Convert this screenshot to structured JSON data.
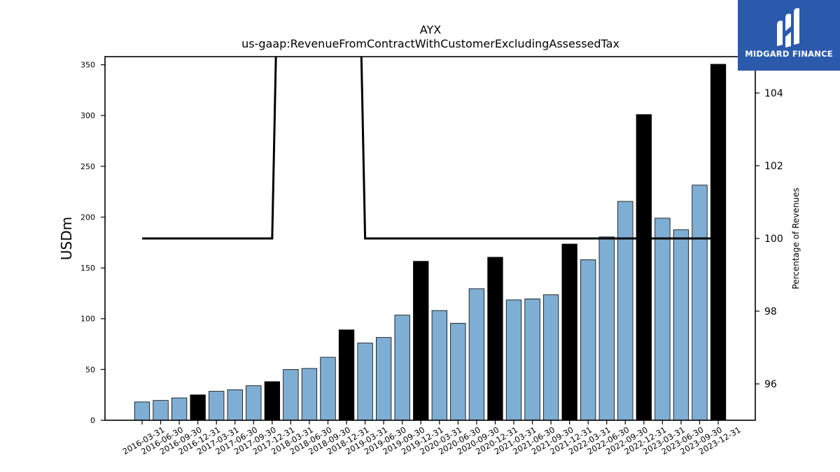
{
  "chart_data": {
    "type": "bar",
    "title": "AYX",
    "subtitle": "us-gaap:RevenueFromContractWithCustomerExcludingAssessedTax",
    "ylabel": "USDm",
    "y2label": "Percentage of Revenues",
    "ylim": [
      0,
      358
    ],
    "y2lim": [
      95.0,
      105.0
    ],
    "yticks": [
      0,
      50,
      100,
      150,
      200,
      250,
      300,
      350
    ],
    "y2ticks": [
      96,
      98,
      100,
      102,
      104
    ],
    "grid": false,
    "categories": [
      "2016-03-31",
      "2016-06-30",
      "2016-09-30",
      "2016-12-31",
      "2017-03-31",
      "2017-06-30",
      "2017-09-30",
      "2017-12-31",
      "2018-03-31",
      "2018-06-30",
      "2018-09-30",
      "2018-12-31",
      "2019-03-31",
      "2019-06-30",
      "2019-09-30",
      "2019-12-31",
      "2020-03-31",
      "2020-06-30",
      "2020-09-30",
      "2020-12-31",
      "2021-03-31",
      "2021-06-30",
      "2021-09-30",
      "2021-12-31",
      "2022-03-31",
      "2022-06-30",
      "2022-09-30",
      "2022-12-31",
      "2023-03-31",
      "2023-06-30",
      "2023-09-30",
      "2023-12-31"
    ],
    "values": [
      18.0,
      19.5,
      22.0,
      25.0,
      28.5,
      30.0,
      34.0,
      38.0,
      50.0,
      51.0,
      62.0,
      89.0,
      76.0,
      81.5,
      103.5,
      156.5,
      108.0,
      95.5,
      129.5,
      160.5,
      118.5,
      119.5,
      123.5,
      173.5,
      158.0,
      180.5,
      215.5,
      301.0,
      199.0,
      187.5,
      231.5,
      350.5
    ],
    "bar_colors": [
      "#7eaed3",
      "#7eaed3",
      "#7eaed3",
      "#000000",
      "#7eaed3",
      "#7eaed3",
      "#7eaed3",
      "#000000",
      "#7eaed3",
      "#7eaed3",
      "#7eaed3",
      "#000000",
      "#7eaed3",
      "#7eaed3",
      "#7eaed3",
      "#000000",
      "#7eaed3",
      "#7eaed3",
      "#7eaed3",
      "#000000",
      "#7eaed3",
      "#7eaed3",
      "#7eaed3",
      "#000000",
      "#7eaed3",
      "#7eaed3",
      "#7eaed3",
      "#000000",
      "#7eaed3",
      "#7eaed3",
      "#7eaed3",
      "#000000"
    ],
    "line_series": {
      "axis": "right",
      "color": "#000000",
      "values": [
        100,
        100,
        100,
        100,
        100,
        100,
        100,
        100,
        125,
        125,
        125,
        125,
        100,
        100,
        100,
        100,
        100,
        100,
        100,
        100,
        100,
        100,
        100,
        100,
        100,
        100,
        100,
        100,
        100,
        100,
        100,
        100
      ]
    }
  },
  "logo": {
    "text": "MIDGARD FINANCE",
    "background": "#2b5aad"
  }
}
